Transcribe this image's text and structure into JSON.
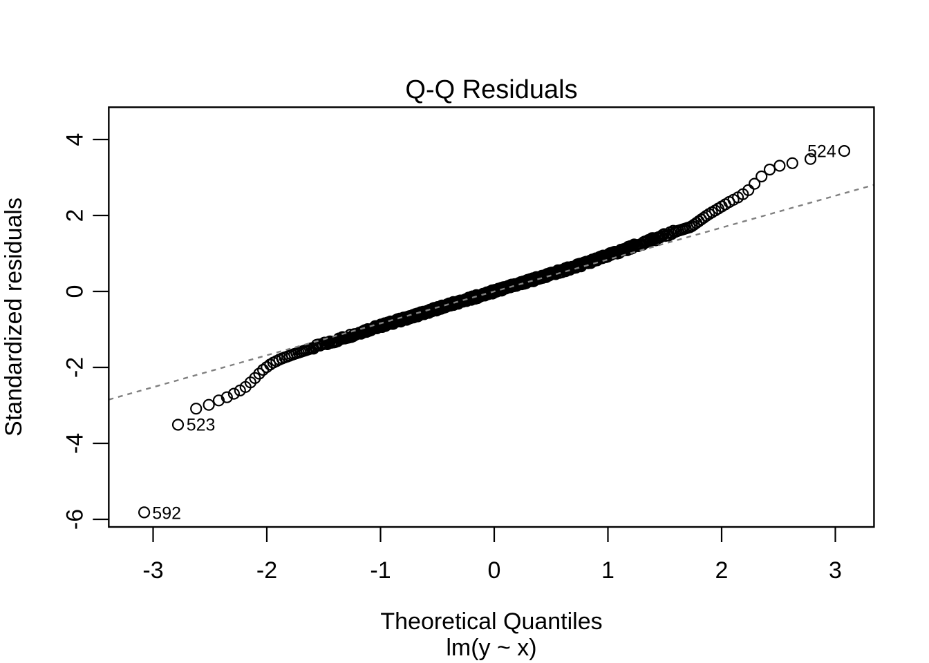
{
  "chart_data": {
    "type": "scatter",
    "chart_kind": "qq-normal-residual-plot",
    "title": "Q-Q Residuals",
    "xlabel": "Theoretical Quantiles",
    "xlabel_sub": "lm(y ~ x)",
    "ylabel": "Standardized residuals",
    "x_ticks": [
      -3,
      -2,
      -1,
      0,
      1,
      2,
      3
    ],
    "y_ticks": [
      -6,
      -4,
      -2,
      0,
      2,
      4
    ],
    "xlim": [
      -3.39,
      3.34
    ],
    "ylim": [
      -6.2,
      4.85
    ],
    "n_points": 600,
    "grid": false,
    "legend": null,
    "background_color": "#ffffff",
    "text_color": "#000000",
    "point_style": {
      "shape": "open-circle",
      "color": "#000000"
    },
    "reference_line": {
      "slope": 0.84,
      "intercept": 0,
      "style": "dashed",
      "color": "#808080"
    },
    "labeled_outliers": [
      {
        "label": "592",
        "x": -3.08,
        "y": -5.83,
        "label_side": "right"
      },
      {
        "label": "523",
        "x": -2.78,
        "y": -3.5,
        "label_side": "right"
      },
      {
        "label": "524",
        "x": 3.08,
        "y": 3.7,
        "label_side": "left"
      }
    ],
    "qq_curve_control_points": [
      [
        -3.08,
        -5.83
      ],
      [
        -2.78,
        -3.5
      ],
      [
        -2.64,
        -3.1
      ],
      [
        -2.52,
        -3.0
      ],
      [
        -2.45,
        -2.9
      ],
      [
        -2.36,
        -2.8
      ],
      [
        -2.28,
        -2.68
      ],
      [
        -2.2,
        -2.55
      ],
      [
        -2.12,
        -2.33
      ],
      [
        -2.04,
        -2.08
      ],
      [
        -1.96,
        -1.9
      ],
      [
        -1.88,
        -1.78
      ],
      [
        -1.78,
        -1.67
      ],
      [
        -1.66,
        -1.55
      ],
      [
        -1.54,
        -1.43
      ],
      [
        -1.42,
        -1.32
      ],
      [
        -1.3,
        -1.2
      ],
      [
        -1.1,
        -1.0
      ],
      [
        -0.9,
        -0.82
      ],
      [
        -0.7,
        -0.64
      ],
      [
        -0.5,
        -0.45
      ],
      [
        -0.3,
        -0.27
      ],
      [
        -0.1,
        -0.09
      ],
      [
        0.1,
        0.09
      ],
      [
        0.3,
        0.27
      ],
      [
        0.5,
        0.46
      ],
      [
        0.7,
        0.64
      ],
      [
        0.9,
        0.84
      ],
      [
        1.1,
        1.05
      ],
      [
        1.3,
        1.27
      ],
      [
        1.45,
        1.42
      ],
      [
        1.6,
        1.58
      ],
      [
        1.73,
        1.7
      ],
      [
        1.8,
        1.85
      ],
      [
        1.88,
        2.02
      ],
      [
        1.97,
        2.18
      ],
      [
        2.07,
        2.36
      ],
      [
        2.16,
        2.5
      ],
      [
        2.25,
        2.7
      ],
      [
        2.32,
        2.94
      ],
      [
        2.4,
        3.17
      ],
      [
        2.47,
        3.29
      ],
      [
        2.57,
        3.34
      ],
      [
        2.73,
        3.45
      ],
      [
        3.08,
        3.7
      ]
    ]
  }
}
